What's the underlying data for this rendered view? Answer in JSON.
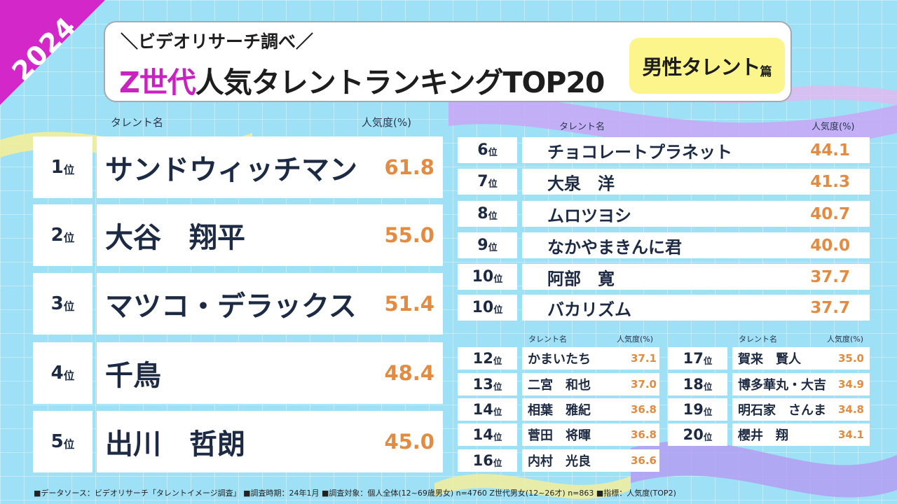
{
  "year": "2024",
  "subtitle": "＼ビデオリサーチ調べ／",
  "title_highlight": "Z世代",
  "title_rest": "人気タレントランキングTOP20",
  "badge_main": "男性タレント",
  "badge_suffix": "篇",
  "col_talent": "タレント名",
  "col_popularity": "人気度(%)",
  "rank_unit": "位",
  "top5": [
    {
      "rank": "1",
      "name": "サンドウィッチマン",
      "value": "61.8"
    },
    {
      "rank": "2",
      "name": "大谷　翔平",
      "value": "55.0"
    },
    {
      "rank": "3",
      "name": "マツコ・デラックス",
      "value": "51.4"
    },
    {
      "rank": "4",
      "name": "千鳥",
      "value": "48.4"
    },
    {
      "rank": "5",
      "name": "出川　哲朗",
      "value": "45.0"
    }
  ],
  "mid": [
    {
      "rank": "6",
      "name": "チョコレートプラネット",
      "value": "44.1"
    },
    {
      "rank": "7",
      "name": "大泉　洋",
      "value": "41.3"
    },
    {
      "rank": "8",
      "name": "ムロツヨシ",
      "value": "40.7"
    },
    {
      "rank": "9",
      "name": "なかやまきんに君",
      "value": "40.0"
    },
    {
      "rank": "10",
      "name": "阿部　寛",
      "value": "37.7"
    },
    {
      "rank": "10",
      "name": "バカリズム",
      "value": "37.7"
    }
  ],
  "lower_left": [
    {
      "rank": "12",
      "name": "かまいたち",
      "value": "37.1"
    },
    {
      "rank": "13",
      "name": "二宮　和也",
      "value": "37.0"
    },
    {
      "rank": "14",
      "name": "相葉　雅紀",
      "value": "36.8"
    },
    {
      "rank": "14",
      "name": "菅田　将暉",
      "value": "36.8"
    },
    {
      "rank": "16",
      "name": "内村　光良",
      "value": "36.6"
    }
  ],
  "lower_right": [
    {
      "rank": "17",
      "name": "賀来　賢人",
      "value": "35.0"
    },
    {
      "rank": "18",
      "name": "博多華丸・大吉",
      "value": "34.9"
    },
    {
      "rank": "19",
      "name": "明石家　さんま",
      "value": "34.8"
    },
    {
      "rank": "20",
      "name": "櫻井　翔",
      "value": "34.1"
    }
  ],
  "footer": "■データソース：ビデオリサーチ「タレントイメージ調査」 ■調査時期：24年1月 ■調査対象：個人全体(12~69歳男女) n=4760 Z世代男女(12~26才) n=863 ■指標：人気度(TOP2)",
  "colors": {
    "accent": "#c822c0",
    "value": "#e38b41",
    "badge": "#fbf58c",
    "background": "#9ee0f5"
  }
}
